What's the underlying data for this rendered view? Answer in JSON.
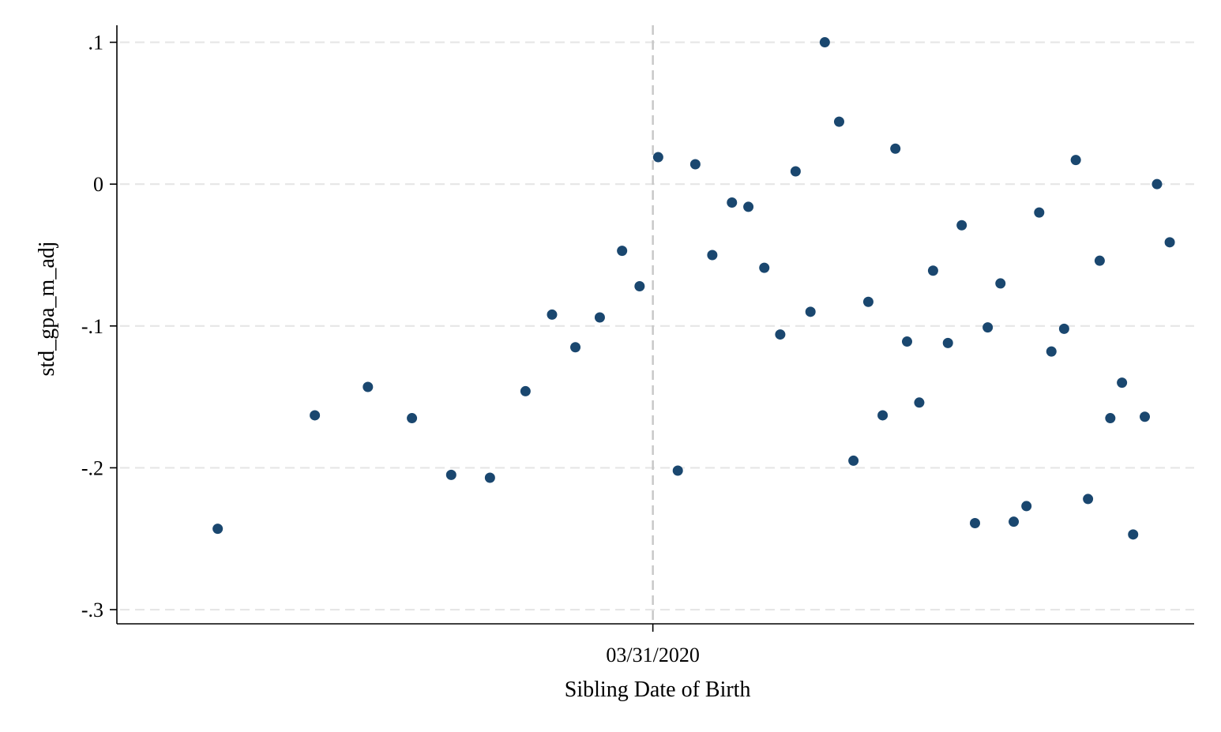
{
  "chart_data": {
    "type": "scatter",
    "title": "",
    "xlabel": "Sibling Date of Birth",
    "ylabel": "std_gpa_m_adj",
    "cutoff_label": "03/31/2020",
    "cutoff_x": 0,
    "x_unit": "days relative to 03/31/2020",
    "xlim": [
      -101,
      102
    ],
    "ylim": [
      -0.31,
      0.112
    ],
    "yticks": [
      0.1,
      0,
      -0.1,
      -0.2,
      -0.3
    ],
    "ytick_labels": [
      ".1",
      "0",
      "-.1",
      "-.2",
      "-.3"
    ],
    "grid": true,
    "legend": "none",
    "marker_color": "#1a476f",
    "points": [
      {
        "x": -82,
        "y": -0.243
      },
      {
        "x": -63.7,
        "y": -0.163
      },
      {
        "x": -53.7,
        "y": -0.143
      },
      {
        "x": -45.4,
        "y": -0.165
      },
      {
        "x": -38,
        "y": -0.205
      },
      {
        "x": -30.7,
        "y": -0.207
      },
      {
        "x": -24,
        "y": -0.146
      },
      {
        "x": -19,
        "y": -0.092
      },
      {
        "x": -14.6,
        "y": -0.115
      },
      {
        "x": -10,
        "y": -0.094
      },
      {
        "x": -5.8,
        "y": -0.047
      },
      {
        "x": -2.5,
        "y": -0.072
      },
      {
        "x": 1,
        "y": 0.019
      },
      {
        "x": 4.7,
        "y": -0.202
      },
      {
        "x": 8,
        "y": 0.014
      },
      {
        "x": 11.2,
        "y": -0.05
      },
      {
        "x": 14.9,
        "y": -0.013
      },
      {
        "x": 18,
        "y": -0.016
      },
      {
        "x": 21,
        "y": -0.059
      },
      {
        "x": 24,
        "y": -0.106
      },
      {
        "x": 26.9,
        "y": 0.009
      },
      {
        "x": 29.7,
        "y": -0.09
      },
      {
        "x": 32.4,
        "y": 0.1
      },
      {
        "x": 35.1,
        "y": 0.044
      },
      {
        "x": 37.8,
        "y": -0.195
      },
      {
        "x": 40.6,
        "y": -0.083
      },
      {
        "x": 43.3,
        "y": -0.163
      },
      {
        "x": 45.7,
        "y": 0.025
      },
      {
        "x": 47.9,
        "y": -0.111
      },
      {
        "x": 50.2,
        "y": -0.154
      },
      {
        "x": 52.8,
        "y": -0.061
      },
      {
        "x": 55.6,
        "y": -0.112
      },
      {
        "x": 58.2,
        "y": -0.029
      },
      {
        "x": 60.7,
        "y": -0.239
      },
      {
        "x": 63.1,
        "y": -0.101
      },
      {
        "x": 65.5,
        "y": -0.07
      },
      {
        "x": 68,
        "y": -0.238
      },
      {
        "x": 70.4,
        "y": -0.227
      },
      {
        "x": 72.8,
        "y": -0.02
      },
      {
        "x": 75.1,
        "y": -0.118
      },
      {
        "x": 77.5,
        "y": -0.102
      },
      {
        "x": 79.7,
        "y": 0.017
      },
      {
        "x": 82,
        "y": -0.222
      },
      {
        "x": 84.2,
        "y": -0.054
      },
      {
        "x": 86.2,
        "y": -0.165
      },
      {
        "x": 88.4,
        "y": -0.14
      },
      {
        "x": 90.5,
        "y": -0.247
      },
      {
        "x": 92.7,
        "y": -0.164
      },
      {
        "x": 95,
        "y": 0
      },
      {
        "x": 97.4,
        "y": -0.041
      }
    ]
  }
}
